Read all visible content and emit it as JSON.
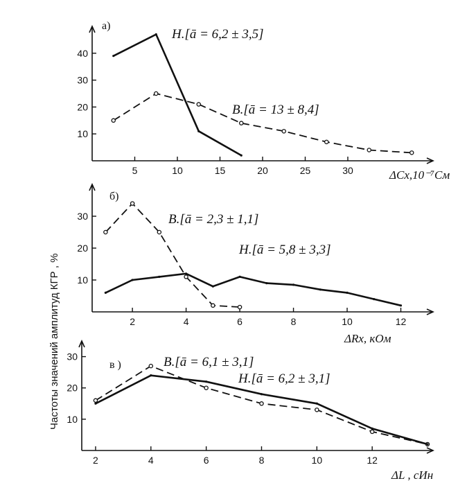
{
  "ylabel": "Частоты значений амплитуд  КГР ,   %",
  "chart_data": [
    {
      "type": "line",
      "panel_label": "а)",
      "xlabel": "ΔCx,10⁻⁷См",
      "ylim": [
        0,
        50
      ],
      "xlim": [
        0,
        40
      ],
      "x_ticks": [
        5,
        10,
        15,
        20,
        25,
        30
      ],
      "y_ticks": [
        10,
        20,
        30,
        40
      ],
      "series": [
        {
          "name": "Н.",
          "annotation": "Н.[ā = 6,2 ± 3,5]",
          "style": "solid",
          "x": [
            2.5,
            7.5,
            12.5,
            17.5
          ],
          "y": [
            39,
            47,
            11,
            2
          ]
        },
        {
          "name": "В.",
          "annotation": "В.[ā = 13 ± 8,4]",
          "style": "dashed",
          "x": [
            2.5,
            7.5,
            12.5,
            17.5,
            22.5,
            27.5,
            32.5,
            37.5
          ],
          "y": [
            15,
            25,
            21,
            14,
            11,
            7,
            4,
            3
          ]
        }
      ]
    },
    {
      "type": "line",
      "panel_label": "б)",
      "xlabel": "ΔRx, кОм",
      "ylim": [
        0,
        40
      ],
      "xlim": [
        0.5,
        13.2
      ],
      "x_ticks": [
        2,
        4,
        6,
        8,
        10,
        12
      ],
      "y_ticks": [
        10,
        20,
        30
      ],
      "series": [
        {
          "name": "В.",
          "annotation": "В.[ā = 2,3 ± 1,1]",
          "style": "dashed",
          "x": [
            1,
            2,
            3,
            4,
            5,
            6
          ],
          "y": [
            25,
            34,
            25,
            11,
            2,
            1.5
          ]
        },
        {
          "name": "Н.",
          "annotation": "Н.[ā = 5,8 ± 3,3]",
          "style": "solid",
          "x": [
            1,
            2,
            3,
            4,
            5,
            6,
            7,
            8,
            9,
            10,
            11,
            12
          ],
          "y": [
            6,
            10,
            11,
            12,
            8,
            11,
            9,
            8.5,
            7,
            6,
            4,
            2
          ]
        }
      ]
    },
    {
      "type": "line",
      "panel_label": "в )",
      "xlabel": "ΔL , сИн",
      "ylim": [
        0,
        35
      ],
      "xlim": [
        1.5,
        14.2
      ],
      "x_ticks": [
        2,
        4,
        6,
        8,
        10,
        12
      ],
      "y_ticks": [
        10,
        20,
        30
      ],
      "series": [
        {
          "name": "В.",
          "annotation": "В.[ā = 6,1 ± 3,1]",
          "style": "dashed",
          "x": [
            2,
            4,
            6,
            8,
            10,
            12,
            14
          ],
          "y": [
            16,
            27,
            20,
            15,
            13,
            6,
            2
          ]
        },
        {
          "name": "Н.",
          "annotation": "Н.[ā = 6,2 ± 3,1]",
          "style": "solid",
          "x": [
            2,
            4,
            6,
            8,
            10,
            12,
            14
          ],
          "y": [
            15,
            24,
            22,
            18,
            15,
            7,
            2
          ]
        }
      ]
    }
  ]
}
